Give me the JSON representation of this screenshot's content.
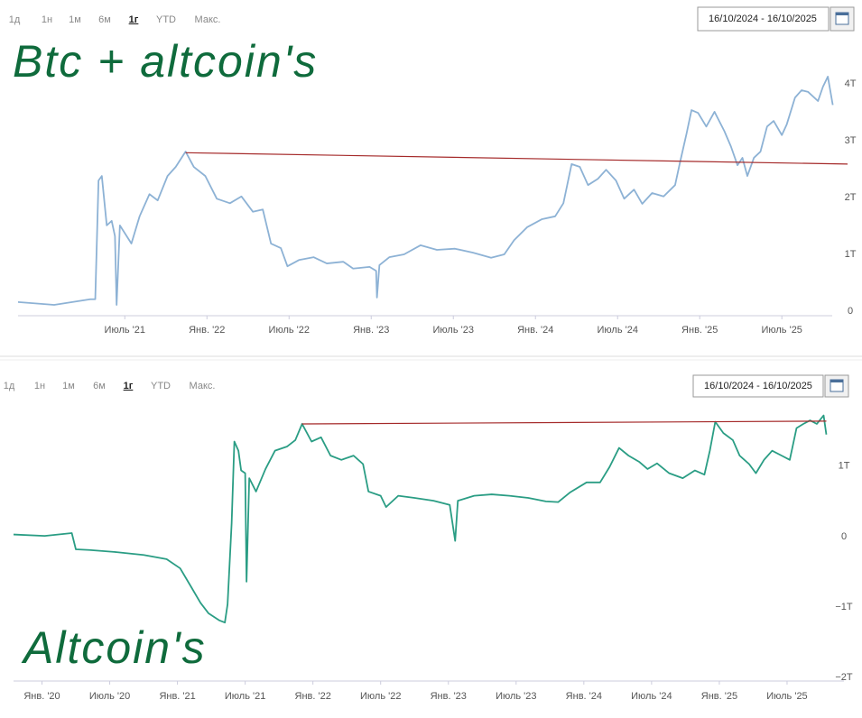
{
  "chart_data": [
    {
      "type": "line",
      "periods": [
        "1д",
        "1н",
        "1м",
        "6м",
        "1г",
        "YTD",
        "Макс."
      ],
      "date_range": "16/10/2024 - 16/10/2025",
      "annotation": "Btc + altcoin's",
      "xlim": [
        2020.85,
        2025.9
      ],
      "xticks": [
        {
          "value": 2021.5,
          "label": "Июль '21"
        },
        {
          "value": 2022.0,
          "label": "Янв. '22"
        },
        {
          "value": 2022.5,
          "label": "Июль '22"
        },
        {
          "value": 2023.0,
          "label": "Янв. '23"
        },
        {
          "value": 2023.5,
          "label": "Июль '23"
        },
        {
          "value": 2024.0,
          "label": "Янв. '24"
        },
        {
          "value": 2024.5,
          "label": "Июль '24"
        },
        {
          "value": 2025.0,
          "label": "Янв. '25"
        },
        {
          "value": 2025.5,
          "label": "Июль '25"
        }
      ],
      "ylim": [
        -0.08,
        5.32
      ],
      "yticks": [
        0,
        {
          "value": 1,
          "label": "1T"
        },
        {
          "value": 2,
          "label": "2T"
        },
        {
          "value": 3,
          "label": "3T"
        },
        {
          "value": 4,
          "label": "4T"
        }
      ],
      "series": [
        {
          "color": "#8db2d5",
          "x": [
            2020.85,
            2021.07,
            2021.29,
            2021.32,
            2021.34,
            2021.36,
            2021.39,
            2021.42,
            2021.44,
            2021.45,
            2021.47,
            2021.54,
            2021.59,
            2021.65,
            2021.7,
            2021.76,
            2021.81,
            2021.87,
            2021.92,
            2021.99,
            2022.06,
            2022.14,
            2022.21,
            2022.28,
            2022.34,
            2022.39,
            2022.45,
            2022.49,
            2022.56,
            2022.65,
            2022.73,
            2022.83,
            2022.89,
            2022.99,
            2023.03,
            2023.035,
            2023.05,
            2023.11,
            2023.2,
            2023.3,
            2023.4,
            2023.51,
            2023.62,
            2023.73,
            2023.81,
            2023.87,
            2023.95,
            2024.04,
            2024.12,
            2024.17,
            2024.22,
            2024.27,
            2024.32,
            2024.38,
            2024.43,
            2024.49,
            2024.54,
            2024.6,
            2024.65,
            2024.71,
            2024.78,
            2024.85,
            2024.88,
            2024.92,
            2024.95,
            2024.99,
            2025.04,
            2025.09,
            2025.15,
            2025.19,
            2025.23,
            2025.26,
            2025.29,
            2025.33,
            2025.37,
            2025.41,
            2025.45,
            2025.5,
            2025.53,
            2025.58,
            2025.62,
            2025.66,
            2025.72,
            2025.75,
            2025.78,
            2025.81
          ],
          "values": [
            0.16,
            0.11,
            0.21,
            0.21,
            2.3,
            2.38,
            1.51,
            1.59,
            1.32,
            0.11,
            1.51,
            1.19,
            1.67,
            2.06,
            1.95,
            2.38,
            2.54,
            2.81,
            2.54,
            2.38,
            1.98,
            1.9,
            2.02,
            1.75,
            1.79,
            1.19,
            1.11,
            0.79,
            0.9,
            0.95,
            0.84,
            0.87,
            0.75,
            0.78,
            0.71,
            0.24,
            0.81,
            0.95,
            1.0,
            1.16,
            1.08,
            1.1,
            1.03,
            0.94,
            1.0,
            1.25,
            1.48,
            1.62,
            1.67,
            1.9,
            2.59,
            2.54,
            2.22,
            2.33,
            2.49,
            2.3,
            1.98,
            2.14,
            1.89,
            2.08,
            2.02,
            2.22,
            2.62,
            3.13,
            3.54,
            3.49,
            3.25,
            3.51,
            3.17,
            2.9,
            2.57,
            2.7,
            2.38,
            2.7,
            2.81,
            3.25,
            3.35,
            3.1,
            3.29,
            3.76,
            3.89,
            3.86,
            3.7,
            3.95,
            4.13,
            3.63
          ]
        },
        {
          "color": "#a52a2a",
          "x": [
            2021.87,
            2025.9
          ],
          "values": [
            2.79,
            2.59
          ]
        }
      ]
    },
    {
      "type": "line",
      "periods": [
        "1д",
        "1н",
        "1м",
        "6м",
        "1г",
        "YTD",
        "Макс."
      ],
      "date_range": "16/10/2024 - 16/10/2025",
      "annotation": "Altcoin's",
      "xlim": [
        2019.79,
        2025.92
      ],
      "xticks": [
        {
          "value": 2020.0,
          "label": "Янв. '20"
        },
        {
          "value": 2020.5,
          "label": "Июль '20"
        },
        {
          "value": 2021.0,
          "label": "Янв. '21"
        },
        {
          "value": 2021.5,
          "label": "Июль '21"
        },
        {
          "value": 2022.0,
          "label": "Янв. '22"
        },
        {
          "value": 2022.5,
          "label": "Июль '22"
        },
        {
          "value": 2023.0,
          "label": "Янв. '23"
        },
        {
          "value": 2023.5,
          "label": "Июль '23"
        },
        {
          "value": 2024.0,
          "label": "Янв. '24"
        },
        {
          "value": 2024.5,
          "label": "Июль '24"
        },
        {
          "value": 2025.0,
          "label": "Янв. '25"
        },
        {
          "value": 2025.5,
          "label": "Июль '25"
        }
      ],
      "ylim": [
        -2.05,
        1.92
      ],
      "yticks": [
        {
          "value": -2,
          "label": "−2T"
        },
        {
          "value": -1,
          "label": "−1T"
        },
        0,
        {
          "value": 1,
          "label": "1T"
        }
      ],
      "series": [
        {
          "color": "#2a9d84",
          "x": [
            2019.79,
            2020.02,
            2020.22,
            2020.25,
            2020.35,
            2020.55,
            2020.75,
            2020.92,
            2021.02,
            2021.1,
            2021.17,
            2021.23,
            2021.31,
            2021.35,
            2021.37,
            2021.4,
            2021.42,
            2021.45,
            2021.47,
            2021.5,
            2021.51,
            2021.53,
            2021.58,
            2021.65,
            2021.72,
            2021.81,
            2021.87,
            2021.92,
            2021.99,
            2022.06,
            2022.13,
            2022.21,
            2022.3,
            2022.37,
            2022.41,
            2022.5,
            2022.54,
            2022.63,
            2022.75,
            2022.89,
            2023.01,
            2023.05,
            2023.07,
            2023.19,
            2023.32,
            2023.45,
            2023.59,
            2023.72,
            2023.81,
            2023.9,
            2024.02,
            2024.12,
            2024.19,
            2024.26,
            2024.33,
            2024.41,
            2024.47,
            2024.54,
            2024.63,
            2024.73,
            2024.82,
            2024.89,
            2024.93,
            2024.97,
            2025.03,
            2025.1,
            2025.15,
            2025.22,
            2025.27,
            2025.33,
            2025.39,
            2025.46,
            2025.52,
            2025.57,
            2025.62,
            2025.67,
            2025.72,
            2025.77,
            2025.79
          ],
          "values": [
            0.03,
            0.01,
            0.05,
            -0.18,
            -0.19,
            -0.22,
            -0.26,
            -0.32,
            -0.45,
            -0.71,
            -0.94,
            -1.09,
            -1.19,
            -1.22,
            -0.96,
            0.19,
            1.35,
            1.22,
            0.94,
            0.9,
            -0.64,
            0.83,
            0.64,
            0.96,
            1.22,
            1.28,
            1.37,
            1.6,
            1.35,
            1.41,
            1.15,
            1.09,
            1.15,
            1.03,
            0.64,
            0.58,
            0.42,
            0.58,
            0.55,
            0.51,
            0.45,
            -0.06,
            0.51,
            0.58,
            0.6,
            0.58,
            0.55,
            0.5,
            0.49,
            0.63,
            0.77,
            0.77,
            0.99,
            1.26,
            1.15,
            1.06,
            0.96,
            1.04,
            0.9,
            0.83,
            0.94,
            0.88,
            1.22,
            1.63,
            1.47,
            1.37,
            1.15,
            1.03,
            0.9,
            1.09,
            1.22,
            1.15,
            1.09,
            1.54,
            1.6,
            1.65,
            1.6,
            1.72,
            1.45
          ]
        },
        {
          "color": "#a52a2a",
          "x": [
            2021.92,
            2025.79
          ],
          "values": [
            1.6,
            1.64
          ]
        }
      ]
    }
  ]
}
